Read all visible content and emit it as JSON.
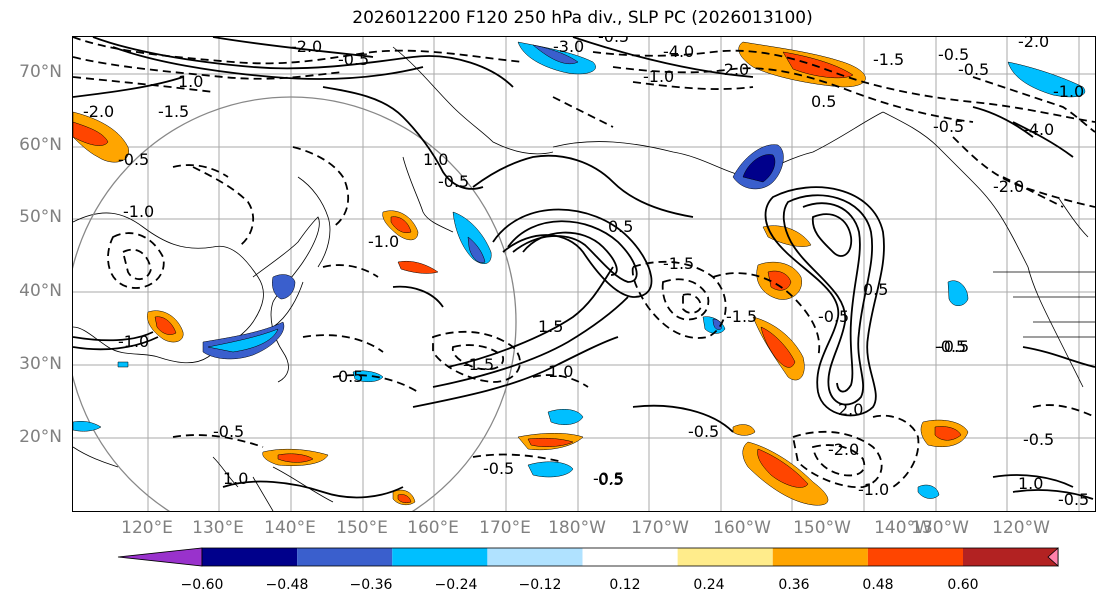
{
  "title": "2026012200 F120 250 hPa div., SLP PC (2026013100)",
  "map": {
    "lat_labels": [
      "70°N",
      "60°N",
      "50°N",
      "40°N",
      "30°N",
      "20°N"
    ],
    "lon_labels": [
      "120°E",
      "130°E",
      "140°E",
      "150°E",
      "160°E",
      "170°E",
      "180°W",
      "170°W",
      "160°W",
      "150°W",
      "140°W",
      "130°W",
      "120°W"
    ],
    "contour_labels": [
      "-2.0",
      "-0.5",
      "-3.0",
      "-0.5",
      "-4.0",
      "-1.0",
      "-2.0",
      "-1.5",
      "-0.5",
      "-0.5",
      "-2.0",
      "-1.0",
      "-4.0",
      "-0.5",
      "1.0",
      "-1.5",
      "-2.0",
      "1.0",
      "-0.5",
      "-1.0",
      "-0.5",
      "-1.0",
      "0.5",
      "0.5",
      "1.5",
      "-1.5",
      "0.5",
      "-1.5",
      "-0.5",
      "-0.5",
      "-0.5",
      "1.0",
      "-2.0",
      "-1.5",
      "2.0",
      "-0.5",
      "-0.5",
      "-1.0",
      "-0.5",
      "0.5",
      "1.0",
      "-0.5",
      "-2.0",
      "-1.0",
      "1.0",
      "0.5",
      "-0.5",
      "-0.5"
    ],
    "colors": {
      "neg_strong": "#9932cc",
      "neg_deep": "#00008b",
      "neg_mid": "#3a5fcd",
      "neg_light": "#00bfff",
      "neg_pale": "#b0e2ff",
      "pos_pale": "#ffec8b",
      "pos_light": "#ffa500",
      "pos_mid": "#ff4500",
      "pos_deep": "#b22222",
      "pos_strong": "#ff82ab"
    }
  },
  "colorbar": {
    "ticks": [
      "−0.60",
      "−0.48",
      "−0.36",
      "−0.24",
      "−0.12",
      "0.12",
      "0.24",
      "0.36",
      "0.48",
      "0.60"
    ],
    "colors": [
      "#9932cc",
      "#00008b",
      "#3a5fcd",
      "#00bfff",
      "#b0e2ff",
      "#ffffff",
      "#ffec8b",
      "#ffa500",
      "#ff4500",
      "#b22222",
      "#ff82ab"
    ]
  }
}
